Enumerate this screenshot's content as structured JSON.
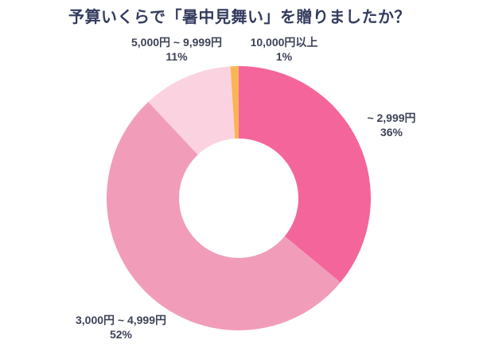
{
  "chart": {
    "title": "予算いくらで「暑中見舞い」を贈りましたか？",
    "title_color": "#333b5e"
  },
  "chart_data": {
    "type": "pie",
    "subtype": "donut",
    "title": "予算いくらで「暑中見舞い」を贈りましたか？",
    "categories": [
      "~ 2,999円",
      "3,000円 ~ 4,999円",
      "5,000円 ~ 9,999円",
      "10,000円以上"
    ],
    "values": [
      36,
      52,
      11,
      1
    ],
    "unit": "%",
    "direction": "clockwise",
    "start_angle_deg": 0,
    "inner_radius_ratio": 0.45,
    "legend_position": "none",
    "label_color": "#3d4357",
    "slices": [
      {
        "label": "~ 2,999円",
        "value": 36,
        "pct_label": "36%",
        "color": "#f4659c"
      },
      {
        "label": "3,000円 ~ 4,999円",
        "value": 52,
        "pct_label": "52%",
        "color": "#f19db9"
      },
      {
        "label": "5,000円 ~ 9,999円",
        "value": 11,
        "pct_label": "11%",
        "color": "#fbd3e0"
      },
      {
        "label": "10,000円以上",
        "value": 1,
        "pct_label": "1%",
        "color": "#f9b553"
      }
    ]
  }
}
